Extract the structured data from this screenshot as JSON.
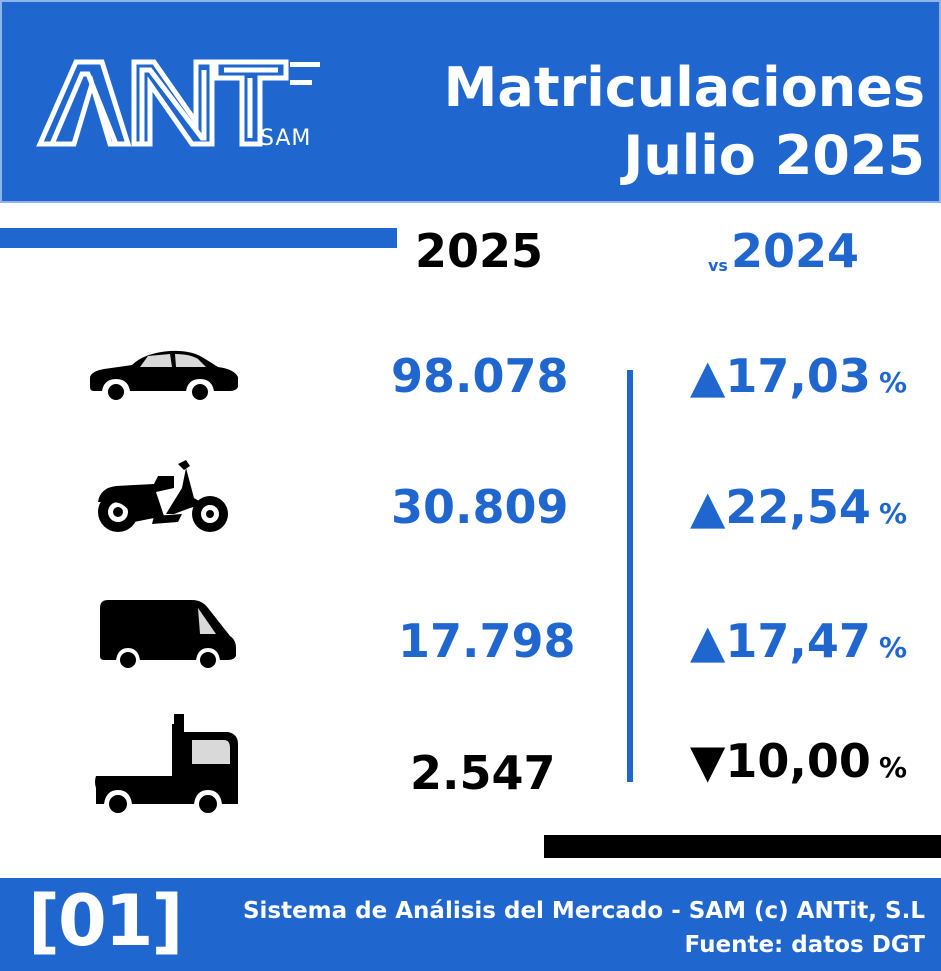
{
  "header": {
    "logo_text": "ANT",
    "logo_sub": "SAM",
    "title_line1": "Matriculaciones",
    "title_line2": "Julio 2025"
  },
  "columns": {
    "current_year": "2025",
    "vs_label": "vs",
    "previous_year": "2024"
  },
  "rows": [
    {
      "vehicle_icon": "car-icon",
      "value": "98.078",
      "direction": "up",
      "arrow": "▲",
      "change": "17,03",
      "pct": "%",
      "value_color": "#1f67cf",
      "change_color": "#1f67cf"
    },
    {
      "vehicle_icon": "motorcycle-icon",
      "value": "30.809",
      "direction": "up",
      "arrow": "▲",
      "change": "22,54",
      "pct": "%",
      "value_color": "#1f67cf",
      "change_color": "#1f67cf"
    },
    {
      "vehicle_icon": "van-icon",
      "value": "17.798",
      "direction": "up",
      "arrow": "▲",
      "change": "17,47",
      "pct": "%",
      "value_color": "#1f67cf",
      "change_color": "#1f67cf"
    },
    {
      "vehicle_icon": "truck-icon",
      "value": "2.547",
      "direction": "down",
      "arrow": "▼",
      "change": "10,00",
      "pct": "%",
      "value_color": "#000000",
      "change_color": "#000000"
    }
  ],
  "footer": {
    "code": "[01]",
    "line1": "Sistema de Análisis del Mercado - SAM (c) ANTit, S.L",
    "line2": "Fuente: datos DGT"
  },
  "colors": {
    "brand_blue": "#1f67cf",
    "black": "#000000",
    "white": "#ffffff"
  }
}
